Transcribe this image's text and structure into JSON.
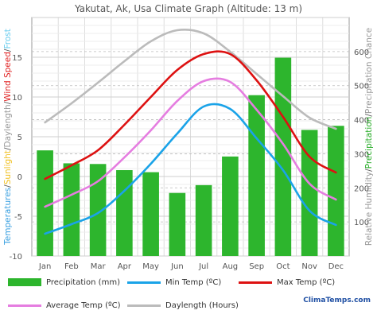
{
  "chart_data": {
    "type": "bar+line",
    "title": "Yakutat, Ak, Usa Climate Graph (Altitude: 13 m)",
    "categories": [
      "Jan",
      "Feb",
      "Mar",
      "Apr",
      "May",
      "Jun",
      "Jul",
      "Aug",
      "Sep",
      "Oct",
      "Nov",
      "Dec"
    ],
    "left_axis": {
      "ylim": [
        -10,
        20
      ],
      "ticks": [
        "-10",
        "-5",
        "0",
        "5",
        "10",
        "15"
      ],
      "label_parts": [
        {
          "text": "Temperatures",
          "color": "#3aa0e0"
        },
        {
          "text": "/",
          "color": "#555555"
        },
        {
          "text": "Sunlight",
          "color": "#f0c020"
        },
        {
          "text": "/",
          "color": "#555555"
        },
        {
          "text": "Daylength",
          "color": "#999999"
        },
        {
          "text": "/",
          "color": "#555555"
        },
        {
          "text": "Wind Speed",
          "color": "#e02020"
        },
        {
          "text": "/",
          "color": "#555555"
        },
        {
          "text": "Frost",
          "color": "#66ccee"
        }
      ]
    },
    "right_axis": {
      "ylim": [
        0,
        700
      ],
      "ticks": [
        "100",
        "200",
        "300",
        "400",
        "500",
        "600"
      ],
      "label_parts": [
        {
          "text": "Relative Humidity",
          "color": "#999999"
        },
        {
          "text": "/",
          "color": "#555555"
        },
        {
          "text": "Precipitation",
          "color": "#22aa22"
        },
        {
          "text": "/",
          "color": "#555555"
        },
        {
          "text": "Precipitation Chance",
          "color": "#999999"
        }
      ]
    },
    "series": [
      {
        "name": "Precipitation (mm)",
        "kind": "bar",
        "axis": "right",
        "color": "#2db52d",
        "values": [
          310,
          272,
          270,
          252,
          246,
          185,
          208,
          292,
          472,
          582,
          370,
          382
        ]
      },
      {
        "name": "Min Temp (ºC)",
        "kind": "line",
        "axis": "left",
        "color": "#1aa3e8",
        "values": [
          -7.2,
          -6.0,
          -4.6,
          -1.8,
          1.6,
          5.4,
          8.8,
          8.5,
          4.8,
          0.8,
          -4.3,
          -6.1
        ]
      },
      {
        "name": "Max Temp (ºC)",
        "kind": "line",
        "axis": "left",
        "color": "#dd1111",
        "values": [
          -0.3,
          1.4,
          3.3,
          6.5,
          10.0,
          13.4,
          15.4,
          15.4,
          12.1,
          7.5,
          2.5,
          0.5
        ]
      },
      {
        "name": "Average Temp (ºC)",
        "kind": "line",
        "axis": "left",
        "color": "#e57de0",
        "values": [
          -3.8,
          -2.3,
          -0.6,
          2.4,
          5.8,
          9.5,
          12.0,
          11.9,
          8.4,
          4.1,
          -0.9,
          -2.9
        ]
      },
      {
        "name": "Daylength (Hours)",
        "kind": "line",
        "axis": "left",
        "color": "#bbbbbb",
        "values": [
          6.8,
          9.2,
          11.8,
          14.5,
          17.0,
          18.4,
          18.0,
          15.7,
          12.9,
          10.1,
          7.4,
          6.0
        ]
      }
    ]
  },
  "brand_text": "ClimaTemps.com"
}
